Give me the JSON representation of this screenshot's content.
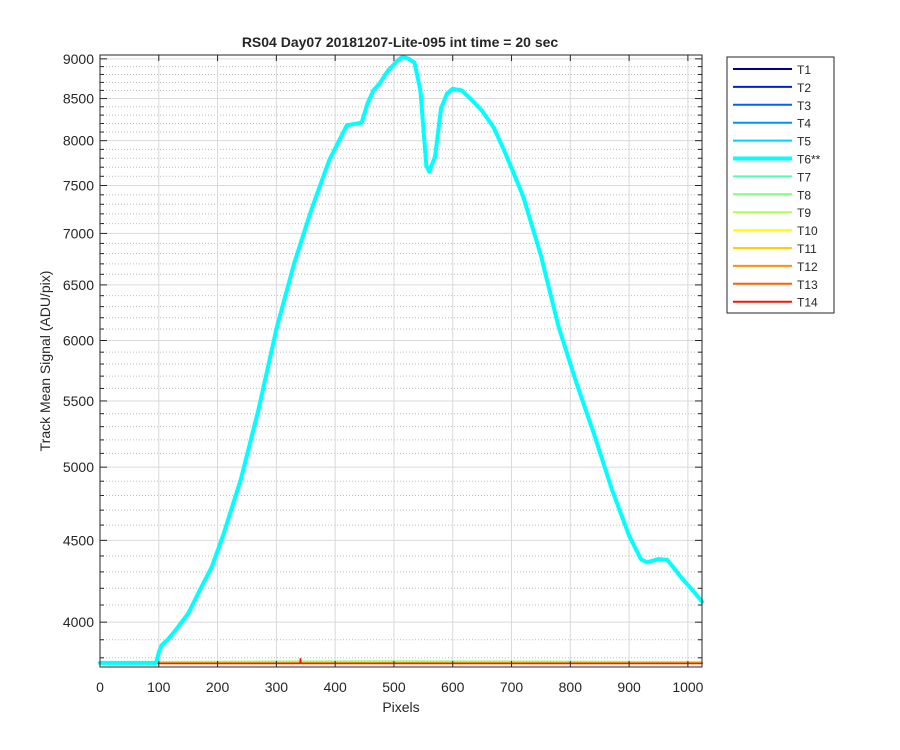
{
  "chart_data": {
    "type": "line",
    "title": "RS04 Day07 20181207-Lite-095 int time = 20 sec",
    "xlabel": "Pixels",
    "ylabel": "Track Mean Signal (ADU/pix)",
    "yscale": "log",
    "xlim": [
      0,
      1024
    ],
    "ylim": [
      3750,
      9050
    ],
    "xticks": [
      0,
      100,
      200,
      300,
      400,
      500,
      600,
      700,
      800,
      900,
      1000
    ],
    "yticks": [
      4000,
      4500,
      5000,
      5500,
      6000,
      6500,
      7000,
      7500,
      8000,
      8500,
      9000
    ],
    "grid": true,
    "legend_position": "outside-right-top",
    "highlighted_series": "T6**",
    "series": [
      {
        "name": "T1",
        "color": "#00008f",
        "x": [
          0,
          1024
        ],
        "y": [
          3772,
          3772
        ]
      },
      {
        "name": "T2",
        "color": "#0020df",
        "x": [
          0,
          1024
        ],
        "y": [
          3772,
          3772
        ]
      },
      {
        "name": "T3",
        "color": "#005fff",
        "x": [
          0,
          1024
        ],
        "y": [
          3773,
          3773
        ]
      },
      {
        "name": "T4",
        "color": "#0090ff",
        "x": [
          0,
          1024
        ],
        "y": [
          3773,
          3773
        ]
      },
      {
        "name": "T5",
        "color": "#00cfff",
        "x": [
          0,
          1024
        ],
        "y": [
          3773,
          3773
        ]
      },
      {
        "name": "T6**",
        "color": "#00ffff",
        "x": [
          0,
          95,
          97,
          100,
          105,
          115,
          130,
          150,
          170,
          190,
          210,
          240,
          270,
          300,
          330,
          360,
          390,
          420,
          445,
          455,
          465,
          475,
          490,
          505,
          515,
          525,
          535,
          545,
          555,
          560,
          570,
          580,
          590,
          600,
          615,
          630,
          650,
          670,
          690,
          720,
          750,
          780,
          810,
          840,
          870,
          900,
          920,
          930,
          940,
          950,
          965,
          975,
          990,
          1010,
          1024
        ],
        "y": [
          3772,
          3772,
          3790,
          3830,
          3870,
          3900,
          3960,
          4050,
          4190,
          4330,
          4540,
          4920,
          5440,
          6100,
          6700,
          7250,
          7780,
          8180,
          8210,
          8440,
          8600,
          8680,
          8850,
          8970,
          9030,
          9000,
          8950,
          8600,
          7720,
          7650,
          7820,
          8380,
          8560,
          8620,
          8600,
          8500,
          8350,
          8150,
          7850,
          7380,
          6780,
          6120,
          5650,
          5250,
          4850,
          4530,
          4380,
          4360,
          4370,
          4380,
          4375,
          4330,
          4260,
          4180,
          4120
        ]
      },
      {
        "name": "T7",
        "color": "#50ffaf",
        "x": [
          0,
          1024
        ],
        "y": [
          3774,
          3774
        ]
      },
      {
        "name": "T8",
        "color": "#7fff7f",
        "x": [
          0,
          300,
          500,
          700,
          1024
        ],
        "y": [
          3778,
          3781,
          3782,
          3781,
          3778
        ]
      },
      {
        "name": "T9",
        "color": "#afff50",
        "x": [
          0,
          1024
        ],
        "y": [
          3775,
          3775
        ]
      },
      {
        "name": "T10",
        "color": "#ffff00",
        "x": [
          0,
          78,
          80,
          82,
          1024
        ],
        "y": [
          3773,
          3773,
          3781,
          3773,
          3773
        ]
      },
      {
        "name": "T11",
        "color": "#ffcf00",
        "x": [
          0,
          1024
        ],
        "y": [
          3772,
          3772
        ]
      },
      {
        "name": "T12",
        "color": "#ff9000",
        "x": [
          0,
          1024
        ],
        "y": [
          3771,
          3771
        ]
      },
      {
        "name": "T13",
        "color": "#ff5f00",
        "x": [
          0,
          1024
        ],
        "y": [
          3770,
          3770
        ]
      },
      {
        "name": "T14",
        "color": "#ef1a00",
        "x": [
          0,
          340,
          341,
          342,
          1024
        ],
        "y": [
          3769,
          3769,
          3795,
          3769,
          3769
        ]
      }
    ]
  }
}
